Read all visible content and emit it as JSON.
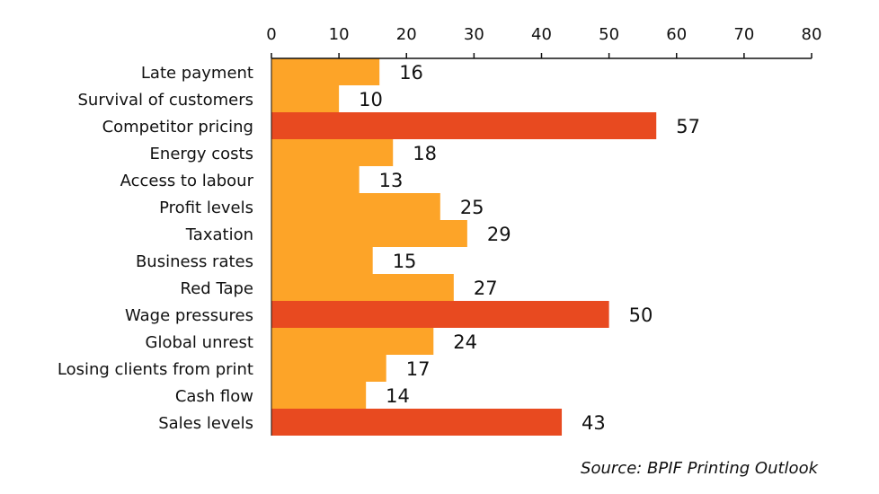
{
  "source": "Source: BPIF Printing Outlook",
  "colors": {
    "standard": "#FDA428",
    "highlight": "#E84A20",
    "axis": "#111111",
    "text": "#111111"
  },
  "chart_data": {
    "type": "bar",
    "orientation": "horizontal",
    "categories": [
      "Late payment",
      "Survival of customers",
      "Competitor pricing",
      "Energy costs",
      "Access to labour",
      "Profit levels",
      "Taxation",
      "Business rates",
      "Red Tape",
      "Wage pressures",
      "Global unrest",
      "Losing clients from print",
      "Cash flow",
      "Sales levels"
    ],
    "values": [
      16,
      10,
      57,
      18,
      13,
      25,
      29,
      15,
      27,
      50,
      24,
      17,
      14,
      43
    ],
    "highlighted": [
      false,
      false,
      true,
      false,
      false,
      false,
      false,
      false,
      false,
      true,
      false,
      false,
      false,
      true
    ],
    "xlim": [
      0,
      80
    ],
    "xticks": [
      0,
      10,
      20,
      30,
      40,
      50,
      60,
      70,
      80
    ],
    "x_axis_position": "top",
    "grid": false,
    "legend": "none",
    "data_labels": true
  }
}
